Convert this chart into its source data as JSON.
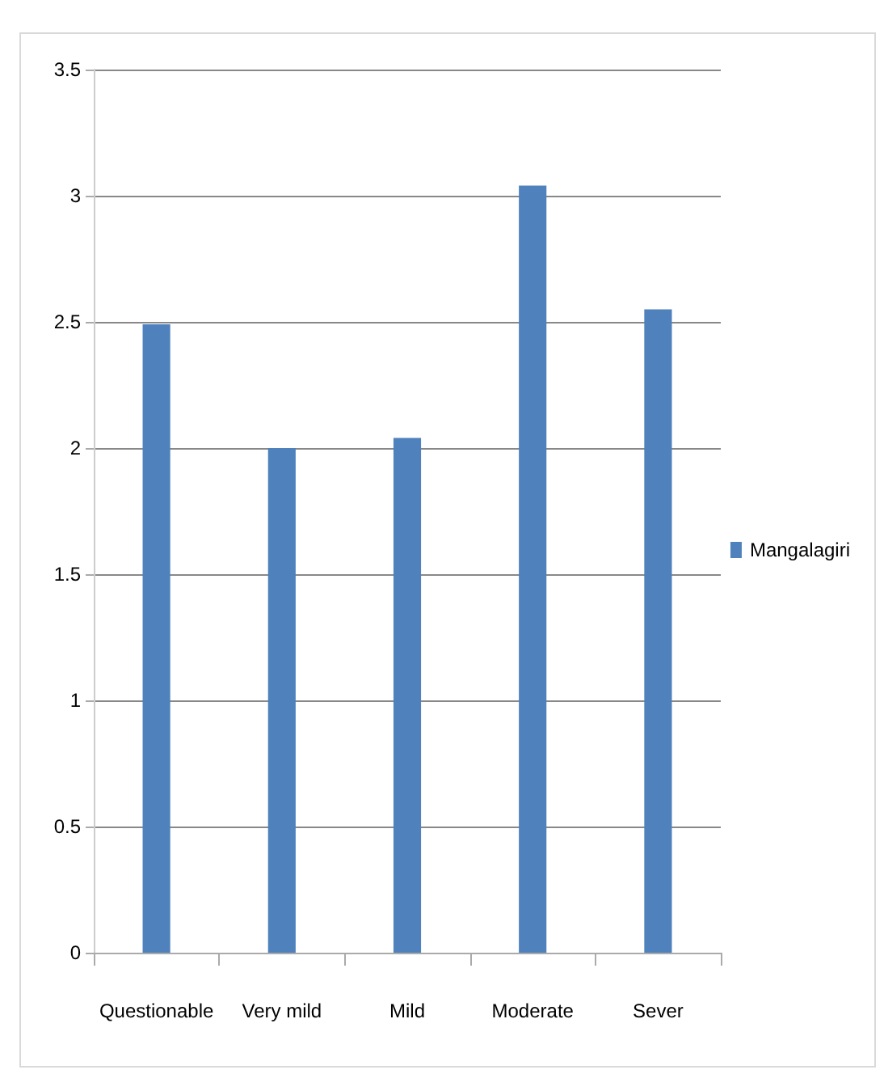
{
  "chart_data": {
    "type": "bar",
    "categories": [
      "Questionable",
      "Very mild",
      "Mild",
      "Moderate",
      "Sever"
    ],
    "series": [
      {
        "name": "Mangalagiri",
        "color": "#4f81bd",
        "values": [
          2.49,
          2.0,
          2.04,
          3.04,
          2.55
        ]
      }
    ],
    "ylim": [
      0,
      3.5
    ],
    "yticks": [
      0,
      0.5,
      1,
      1.5,
      2,
      2.5,
      3,
      3.5
    ],
    "grid": "y",
    "legend": "right"
  }
}
